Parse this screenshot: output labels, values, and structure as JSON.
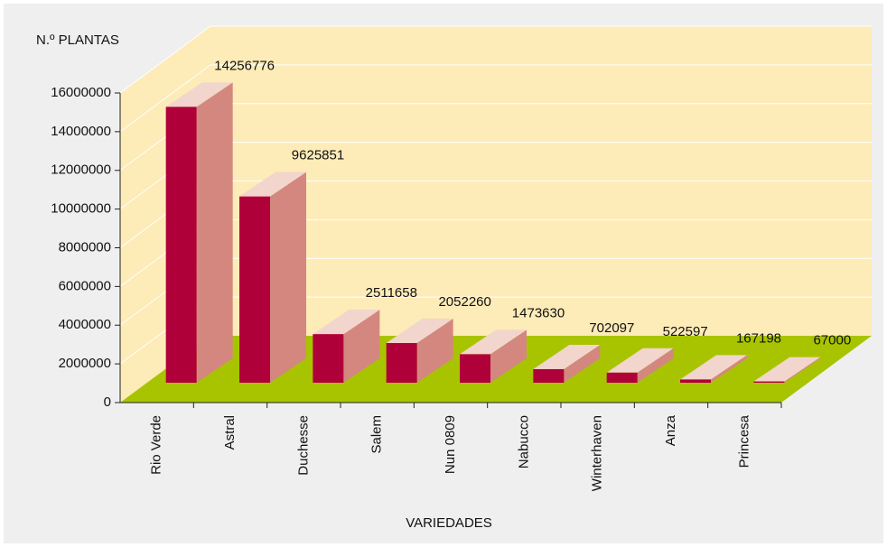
{
  "chart_data": {
    "type": "bar3d",
    "y_axis_label": "N.º PLANTAS",
    "x_axis_label": "VARIEDADES",
    "categories": [
      "Rio Verde",
      "Astral",
      "Duchesse",
      "Salem",
      "Nun 0809",
      "Nabucco",
      "Winterhaven",
      "Anza",
      "Princesa"
    ],
    "values": [
      14256776,
      9625851,
      2511658,
      2052260,
      1473630,
      702097,
      522597,
      167198,
      67000
    ],
    "color": "#b0003a",
    "side_color": "#d4877f",
    "top_color": "#f2d5cc",
    "wall_color": "#fdebb8",
    "floor_color": "#a8c400",
    "ylim": [
      0,
      16000000
    ],
    "yticks": [
      0,
      2000000,
      4000000,
      6000000,
      8000000,
      10000000,
      12000000,
      14000000,
      16000000
    ],
    "grid": true
  }
}
